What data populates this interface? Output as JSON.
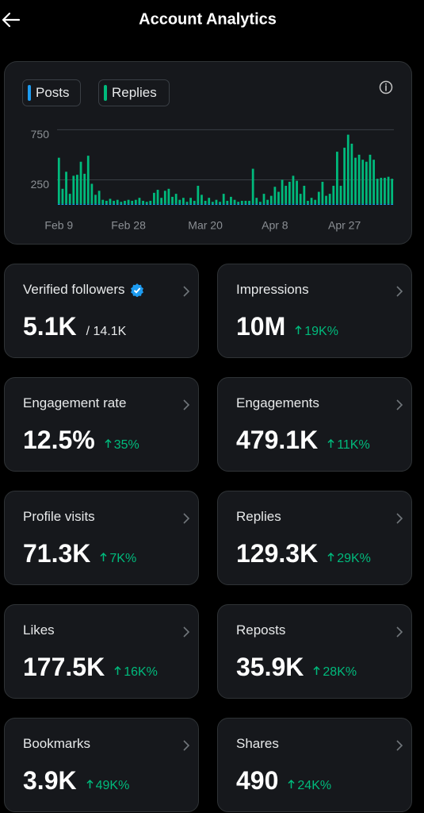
{
  "header": {
    "title": "Account Analytics"
  },
  "chart_data": {
    "type": "bar",
    "categories": [
      "Feb 9",
      null,
      null,
      null,
      null,
      null,
      null,
      null,
      null,
      null,
      null,
      null,
      null,
      null,
      null,
      null,
      null,
      null,
      null,
      "Feb 28",
      null,
      null,
      null,
      null,
      null,
      null,
      null,
      null,
      null,
      null,
      null,
      null,
      null,
      null,
      null,
      null,
      null,
      null,
      null,
      null,
      "Mar 20",
      null,
      null,
      null,
      null,
      null,
      null,
      null,
      null,
      null,
      null,
      null,
      null,
      null,
      null,
      null,
      null,
      null,
      null,
      "Apr 8",
      null,
      null,
      null,
      null,
      null,
      null,
      null,
      null,
      null,
      null,
      null,
      null,
      null,
      null,
      null,
      null,
      null,
      null,
      "Apr 27",
      null,
      null,
      null,
      null,
      null,
      null,
      null,
      null,
      null,
      null,
      null,
      null,
      null
    ],
    "series": [
      {
        "name": "Posts",
        "color": "#1d9bf0",
        "values": [
          10,
          10,
          10,
          10,
          10,
          10,
          10,
          10,
          10,
          10,
          10,
          10,
          10,
          10,
          10,
          10,
          10,
          10,
          10,
          10,
          10,
          10,
          10,
          10,
          10,
          10,
          10,
          10,
          10,
          10,
          10,
          10,
          10,
          10,
          10,
          10,
          10,
          10,
          10,
          10,
          10,
          10,
          10,
          10,
          10,
          10,
          10,
          10,
          10,
          10,
          10,
          10,
          10,
          10,
          10,
          10,
          10,
          10,
          10,
          10,
          10,
          10,
          10,
          10,
          10,
          10,
          10,
          10,
          10,
          10,
          10,
          10,
          10,
          10,
          10,
          10,
          10,
          10,
          10,
          10,
          10,
          10,
          10,
          10,
          10,
          10,
          10,
          10,
          10,
          10,
          10,
          10
        ]
      },
      {
        "name": "Replies",
        "color": "#00ba7c",
        "values": [
          460,
          150,
          320,
          100,
          280,
          290,
          420,
          300,
          480,
          200,
          90,
          130,
          40,
          30,
          50,
          30,
          40,
          20,
          30,
          40,
          30,
          40,
          60,
          30,
          20,
          30,
          110,
          140,
          60,
          130,
          150,
          70,
          100,
          40,
          60,
          20,
          60,
          30,
          180,
          90,
          30,
          60,
          20,
          40,
          20,
          100,
          30,
          70,
          40,
          20,
          30,
          30,
          30,
          350,
          60,
          20,
          100,
          40,
          80,
          170,
          120,
          240,
          180,
          220,
          280,
          230,
          100,
          180,
          30,
          60,
          40,
          120,
          220,
          80,
          100,
          180,
          520,
          180,
          560,
          690,
          600,
          460,
          490,
          440,
          420,
          490,
          440,
          250,
          260,
          260,
          270,
          250
        ]
      }
    ],
    "stacked": true,
    "ylim": [
      0,
      800
    ],
    "yticks": [
      250,
      750
    ],
    "grid": true
  },
  "metrics": [
    {
      "label": "Verified followers",
      "value": "5.1K",
      "total": "/ 14.1K",
      "verified": true
    },
    {
      "label": "Impressions",
      "value": "10M",
      "change": "19K%"
    },
    {
      "label": "Engagement rate",
      "value": "12.5%",
      "change": "35%"
    },
    {
      "label": "Engagements",
      "value": "479.1K",
      "change": "11K%"
    },
    {
      "label": "Profile visits",
      "value": "71.3K",
      "change": "7K%"
    },
    {
      "label": "Replies",
      "value": "129.3K",
      "change": "29K%"
    },
    {
      "label": "Likes",
      "value": "177.5K",
      "change": "16K%"
    },
    {
      "label": "Reposts",
      "value": "35.9K",
      "change": "28K%"
    },
    {
      "label": "Bookmarks",
      "value": "3.9K",
      "change": "49K%"
    },
    {
      "label": "Shares",
      "value": "490",
      "change": "24K%"
    }
  ]
}
